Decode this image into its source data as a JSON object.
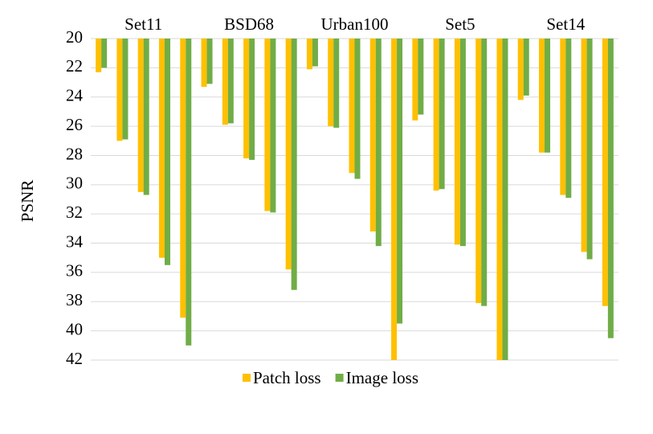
{
  "chart_data": {
    "type": "bar",
    "y_label": "PSNR",
    "groups": [
      "Set11",
      "BSD68",
      "Urban100",
      "Set5",
      "Set14"
    ],
    "categories": [
      null,
      null,
      null,
      null,
      null,
      null,
      null,
      null,
      null,
      null,
      null,
      null,
      null,
      null,
      null,
      null,
      null,
      null,
      null,
      null,
      null,
      null,
      null,
      null,
      null
    ],
    "series": [
      {
        "name": "Patch loss",
        "color": "#FFC000",
        "values": [
          22.3,
          27.0,
          30.5,
          35.0,
          39.1,
          23.3,
          25.9,
          28.2,
          31.8,
          35.8,
          22.1,
          26.0,
          29.2,
          33.2,
          42.0,
          25.6,
          30.4,
          34.1,
          38.1,
          42.0,
          24.2,
          27.8,
          30.7,
          34.6,
          38.3
        ]
      },
      {
        "name": "Image loss",
        "color": "#70AD47",
        "values": [
          22.0,
          26.9,
          30.7,
          35.5,
          41.0,
          23.1,
          25.8,
          28.3,
          31.9,
          37.2,
          21.9,
          26.1,
          29.6,
          34.2,
          39.5,
          25.2,
          30.3,
          34.2,
          38.3,
          42.0,
          23.9,
          27.8,
          30.9,
          35.1,
          40.5
        ]
      }
    ],
    "ylim": [
      20,
      42
    ],
    "yticks": [
      20,
      22,
      24,
      26,
      28,
      30,
      32,
      34,
      36,
      38,
      40,
      42
    ],
    "y_inverted": true,
    "grid": true,
    "legend": "bottom"
  }
}
